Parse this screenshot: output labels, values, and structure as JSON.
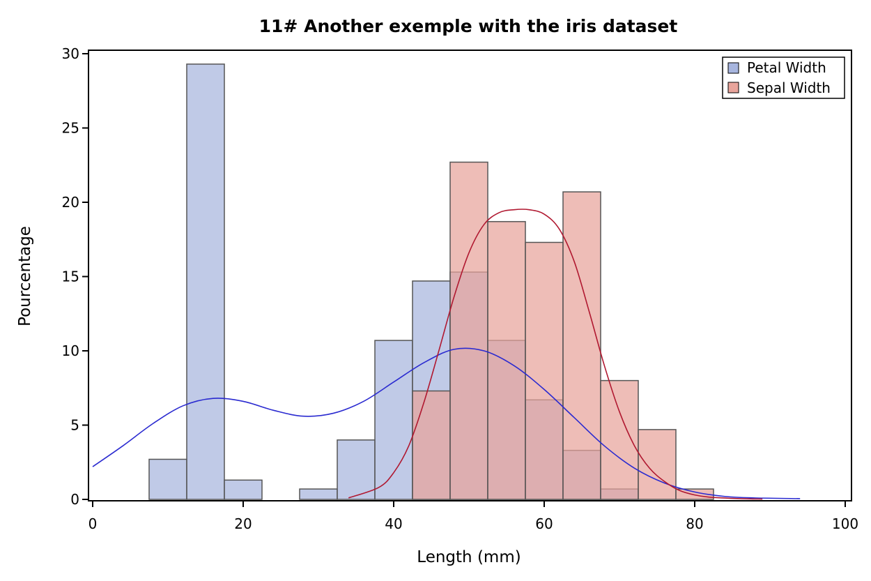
{
  "colors": {
    "petal_fill": "#a7b5de",
    "sepal_fill": "#e8a49b",
    "petal_curve": "#2a2ad0",
    "sepal_curve": "#b01830",
    "bar_edge": "#555555",
    "axis": "#000000"
  },
  "chart_data": {
    "type": "bar",
    "title": "11# Another exemple with the iris dataset",
    "xlabel": "Length (mm)",
    "ylabel": "Pourcentage",
    "xlim": [
      0,
      100
    ],
    "ylim": [
      0,
      30
    ],
    "xticks": [
      0,
      20,
      40,
      60,
      80,
      100
    ],
    "yticks": [
      0,
      5,
      10,
      15,
      20,
      25,
      30
    ],
    "bin_width": 5,
    "legend_position": "top-right",
    "series": [
      {
        "name": "Petal Width",
        "bins": [
          {
            "center": 10,
            "value": 2.7
          },
          {
            "center": 15,
            "value": 29.3
          },
          {
            "center": 20,
            "value": 1.3
          },
          {
            "center": 25,
            "value": 0
          },
          {
            "center": 30,
            "value": 0.7
          },
          {
            "center": 35,
            "value": 4.0
          },
          {
            "center": 40,
            "value": 10.7
          },
          {
            "center": 45,
            "value": 14.7
          },
          {
            "center": 50,
            "value": 15.3
          },
          {
            "center": 55,
            "value": 10.7
          },
          {
            "center": 60,
            "value": 6.7
          },
          {
            "center": 65,
            "value": 3.3
          },
          {
            "center": 70,
            "value": 0.7
          }
        ],
        "density_curve": [
          [
            0,
            2.2
          ],
          [
            4,
            3.6
          ],
          [
            8,
            5.1
          ],
          [
            12,
            6.3
          ],
          [
            16,
            6.8
          ],
          [
            20,
            6.6
          ],
          [
            24,
            6.0
          ],
          [
            28,
            5.6
          ],
          [
            32,
            5.8
          ],
          [
            36,
            6.6
          ],
          [
            40,
            7.9
          ],
          [
            44,
            9.2
          ],
          [
            48,
            10.1
          ],
          [
            52,
            10.0
          ],
          [
            56,
            9.0
          ],
          [
            60,
            7.4
          ],
          [
            64,
            5.5
          ],
          [
            68,
            3.6
          ],
          [
            72,
            2.1
          ],
          [
            76,
            1.1
          ],
          [
            80,
            0.5
          ],
          [
            84,
            0.2
          ],
          [
            88,
            0.1
          ],
          [
            94,
            0.05
          ]
        ]
      },
      {
        "name": "Sepal Width",
        "bins": [
          {
            "center": 45,
            "value": 7.3
          },
          {
            "center": 50,
            "value": 22.7
          },
          {
            "center": 55,
            "value": 18.7
          },
          {
            "center": 60,
            "value": 17.3
          },
          {
            "center": 65,
            "value": 20.7
          },
          {
            "center": 70,
            "value": 8.0
          },
          {
            "center": 75,
            "value": 4.7
          },
          {
            "center": 80,
            "value": 0.7
          }
        ],
        "density_curve": [
          [
            34,
            0.1
          ],
          [
            38,
            0.8
          ],
          [
            40,
            1.8
          ],
          [
            42,
            3.6
          ],
          [
            44,
            6.5
          ],
          [
            46,
            10.0
          ],
          [
            48,
            13.6
          ],
          [
            50,
            16.6
          ],
          [
            52,
            18.5
          ],
          [
            54,
            19.3
          ],
          [
            56,
            19.5
          ],
          [
            58,
            19.5
          ],
          [
            60,
            19.2
          ],
          [
            62,
            18.2
          ],
          [
            64,
            16.0
          ],
          [
            66,
            12.6
          ],
          [
            68,
            9.0
          ],
          [
            70,
            5.9
          ],
          [
            72,
            3.6
          ],
          [
            74,
            2.1
          ],
          [
            76,
            1.2
          ],
          [
            78,
            0.6
          ],
          [
            80,
            0.3
          ],
          [
            82,
            0.15
          ],
          [
            86,
            0.05
          ],
          [
            89,
            0.02
          ]
        ]
      }
    ]
  }
}
